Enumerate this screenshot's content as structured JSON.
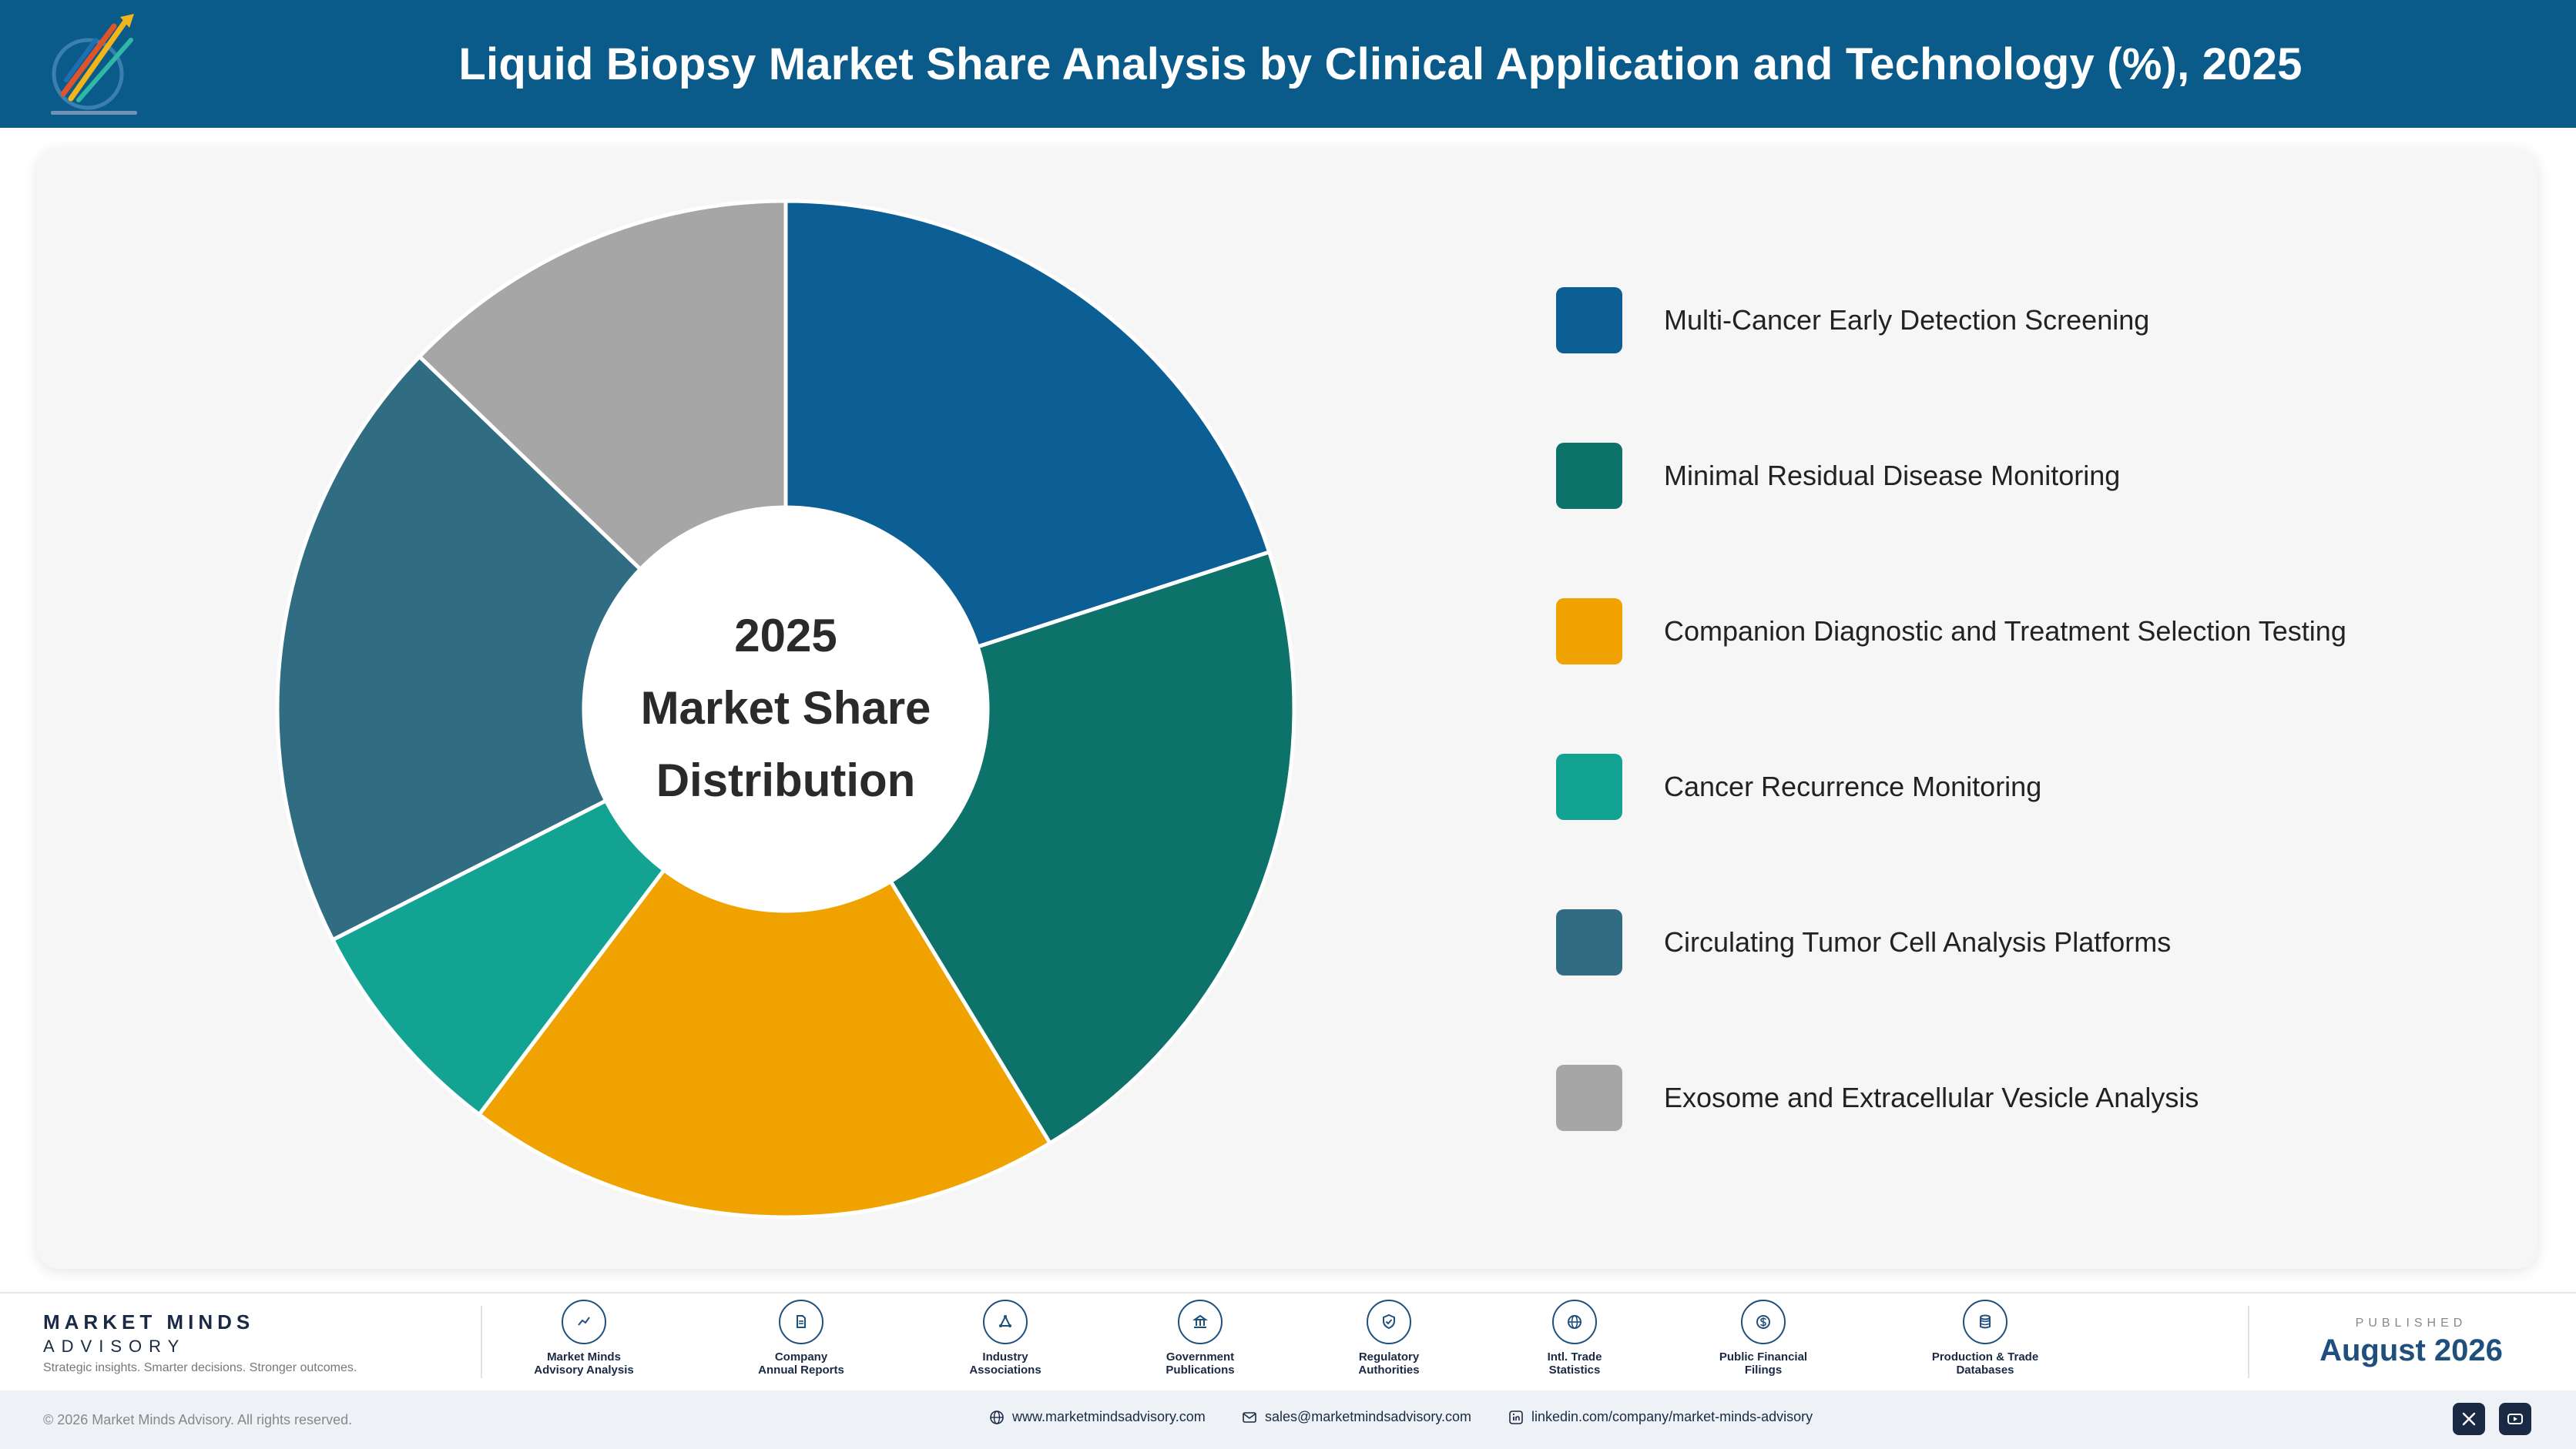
{
  "header": {
    "title": "Liquid Biopsy Market Share Analysis by Clinical Application and Technology (%), 2025",
    "logo_icon": "market-minds-logo"
  },
  "chart_data": {
    "type": "pie",
    "donut": true,
    "title": "Liquid Biopsy Market Share Analysis by Clinical Application and Technology (%), 2025",
    "center_label": [
      "2025",
      "Market Share",
      "Distribution"
    ],
    "categories": [
      "Multi-Cancer Early Detection Screening",
      "Minimal Residual Disease Monitoring",
      "Companion Diagnostic and Treatment Selection Testing",
      "Cancer Recurrence Monitoring",
      "Circulating Tumor Cell Analysis Platforms",
      "Exosome and Extracellular Vesicle Analysis"
    ],
    "values": [
      20.0,
      21.3,
      19.0,
      7.2,
      19.7,
      12.8
    ],
    "colors": [
      "#0b5f94",
      "#0d7269",
      "#efa200",
      "#13a393",
      "#316d82",
      "#a6a6a6"
    ],
    "legend_position": "right"
  },
  "footer": {
    "brand_name": "MARKET MINDS",
    "brand_sub": "ADVISORY",
    "tagline": "Strategic insights. Smarter decisions. Stronger outcomes.",
    "sources": [
      {
        "line1": "Market Minds",
        "line2": "Advisory Analysis",
        "icon": "chart-line-icon"
      },
      {
        "line1": "Company",
        "line2": "Annual Reports",
        "icon": "document-icon"
      },
      {
        "line1": "Industry",
        "line2": "Associations",
        "icon": "network-icon"
      },
      {
        "line1": "Government",
        "line2": "Publications",
        "icon": "government-building-icon"
      },
      {
        "line1": "Regulatory",
        "line2": "Authorities",
        "icon": "shield-check-icon"
      },
      {
        "line1": "Intl. Trade",
        "line2": "Statistics",
        "icon": "globe-icon"
      },
      {
        "line1": "Public Financial",
        "line2": "Filings",
        "icon": "dollar-coin-icon"
      },
      {
        "line1": "Production & Trade",
        "line2": "Databases",
        "icon": "database-icon"
      }
    ],
    "published_label": "PUBLISHED",
    "published_date": "August 2026",
    "copyright": "© 2026 Market Minds Advisory. All rights reserved.",
    "website": "www.marketmindsadvisory.com",
    "email": "sales@marketmindsadvisory.com",
    "linkedin": "linkedin.com/company/market-minds-advisory",
    "social": [
      "x-icon",
      "youtube-icon"
    ]
  }
}
